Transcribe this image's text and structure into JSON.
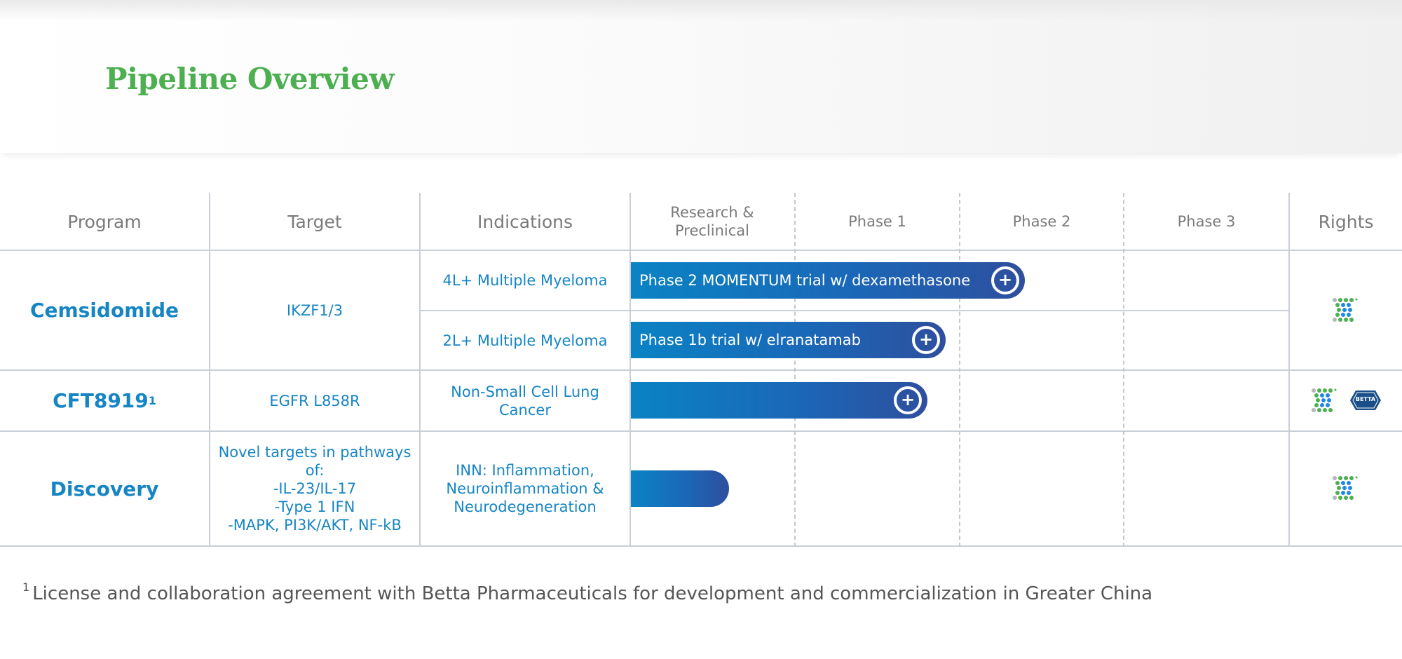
{
  "title": "Pipeline Overview",
  "headers": {
    "program": "Program",
    "target": "Target",
    "indications": "Indications",
    "research": "Research & Preclinical",
    "phase1": "Phase 1",
    "phase2": "Phase 2",
    "phase3": "Phase 3",
    "rights": "Rights"
  },
  "programs": [
    {
      "name": "Cemsidomide",
      "target": "IKZF1/3",
      "rows": [
        {
          "indication": "4L+ Multiple Myeloma",
          "bar_label": "Phase 2 MOMENTUM trial w/ dexamethasone"
        },
        {
          "indication": "2L+ Multiple Myeloma",
          "bar_label": "Phase 1b trial w/ elranatamab"
        }
      ]
    },
    {
      "name": "CFT8919",
      "superscript": "1",
      "target": "EGFR L858R",
      "rows": [
        {
          "indication": "Non-Small Cell Lung Cancer",
          "bar_label": ""
        }
      ]
    },
    {
      "name": "Discovery",
      "target_lines": [
        "Novel targets in pathways",
        "of:",
        "-IL-23/IL-17",
        "-Type 1 IFN",
        "-MAPK, PI3K/AKT, NF-kB"
      ],
      "rows": [
        {
          "indication": "INN: Inflammation, Neuroinflammation & Neurodegeneration",
          "bar_label": ""
        }
      ]
    }
  ],
  "rights_logos": {
    "company_icon": "c4-dot-logo-icon",
    "partner_icon": "betta-logo-icon",
    "partner_text": "BETTA"
  },
  "footnote": {
    "marker": "1",
    "text": "License and collaboration agreement with Betta Pharmaceuticals for development and commercialization in Greater China"
  },
  "colors": {
    "title_green": "#4caf50",
    "program_blue": "#1685c4",
    "bar_start": "#0a83c4",
    "bar_end": "#2e4f9e",
    "grid": "#c8cfd6"
  }
}
